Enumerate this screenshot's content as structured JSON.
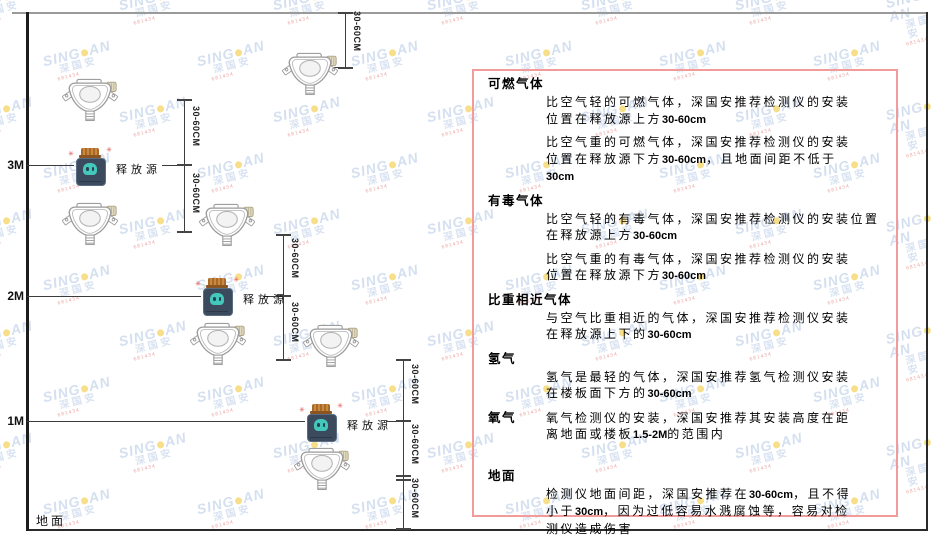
{
  "watermark": {
    "brand_left": "SING",
    "brand_right": "AN",
    "cn": "深国安",
    "red": "681434"
  },
  "diagram": {
    "height_labels": [
      "3M",
      "2M",
      "1M"
    ],
    "ground_label": "地面",
    "source_label": "释放源",
    "dim_label": "30-60CM"
  },
  "panel": {
    "sections": [
      {
        "heading": "可燃气体",
        "inline": false,
        "paragraphs": [
          [
            "比空气轻的可燃气体，深国安推荐检测仪的安装",
            "位置在释放源上方30-60cm"
          ],
          [
            "比空气重的可燃气体，深国安推荐检测仪的安装",
            "位置在释放源下方30-60cm，且地面间距不低于",
            "30cm"
          ]
        ]
      },
      {
        "heading": "有毒气体",
        "inline": false,
        "paragraphs": [
          [
            "比空气轻的有毒气体，深国安推荐检测仪的安装位置",
            "在释放源上方30-60cm"
          ],
          [
            "比空气重的有毒气体，深国安推荐检测仪的安装",
            "位置在释放源下方30-60cm"
          ]
        ]
      },
      {
        "heading": "比重相近气体",
        "inline": false,
        "paragraphs": [
          [
            "与空气比重相近的气体，深国安推荐检测仪安装",
            "在释放源上下的30-60cm"
          ]
        ]
      },
      {
        "heading": "氢气",
        "inline": false,
        "paragraphs": [
          [
            "氢气是最轻的气体，深国安推荐氢气检测仪安装",
            "在楼板面下方的30-60cm"
          ]
        ]
      },
      {
        "heading": "氧气",
        "inline": true,
        "paragraphs": [
          [
            "氧气检测仪的安装，深国安推荐其安装高度在距",
            "离地面或楼板1.5-2M的范围内"
          ]
        ]
      },
      {
        "heading": "地面",
        "inline": false,
        "ground_gap": true,
        "paragraphs": [
          [
            "检测仪地面间距，深国安推荐在30-60cm，且不得",
            "小于30cm，因为过低容易水溅腐蚀等，容易对检",
            "测仪造成伤害"
          ]
        ]
      }
    ]
  }
}
